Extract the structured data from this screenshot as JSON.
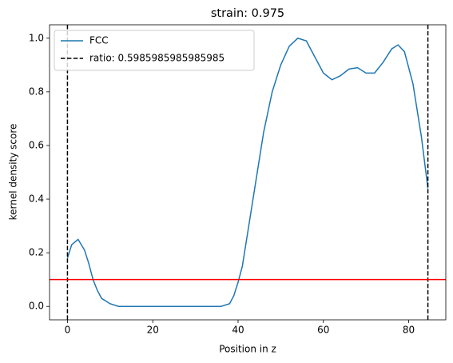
{
  "chart_data": {
    "type": "line",
    "title": "strain: 0.975",
    "x_label": "Position in z",
    "y_label": "kernel density score",
    "x": [
      0,
      1,
      2.5,
      4,
      5,
      6,
      7,
      8,
      10,
      12,
      15,
      20,
      25,
      30,
      36,
      38,
      39,
      40,
      41,
      42,
      44,
      46,
      48,
      50,
      52,
      54,
      56,
      58,
      60,
      62,
      64,
      66,
      68,
      70,
      72,
      74,
      76,
      77.5,
      79,
      81,
      83,
      84.5
    ],
    "series": [
      {
        "name": "FCC",
        "color": "#1f77b4",
        "values": [
          0.18,
          0.23,
          0.25,
          0.21,
          0.16,
          0.1,
          0.06,
          0.03,
          0.01,
          0.0,
          0.0,
          0.0,
          0.0,
          0.0,
          0.0,
          0.01,
          0.04,
          0.09,
          0.15,
          0.25,
          0.45,
          0.65,
          0.8,
          0.9,
          0.97,
          1.0,
          0.99,
          0.93,
          0.87,
          0.845,
          0.86,
          0.885,
          0.89,
          0.87,
          0.87,
          0.91,
          0.96,
          0.975,
          0.95,
          0.83,
          0.63,
          0.44
        ]
      }
    ],
    "vlines": {
      "name": "ratio: 0.5985985985985985",
      "color": "#000000",
      "x": [
        0,
        84.5
      ]
    },
    "hline": {
      "y": 0.1,
      "color": "#ff0000"
    },
    "xlim": [
      -4.2,
      88.7
    ],
    "ylim": [
      -0.05,
      1.05
    ],
    "xticks": [
      0,
      20,
      40,
      60,
      80
    ],
    "yticks": [
      {
        "value": 0,
        "label": "0.0"
      },
      0.2,
      0.4,
      0.6,
      0.8,
      {
        "value": 1,
        "label": "1.0"
      }
    ],
    "legend": "upper left"
  }
}
